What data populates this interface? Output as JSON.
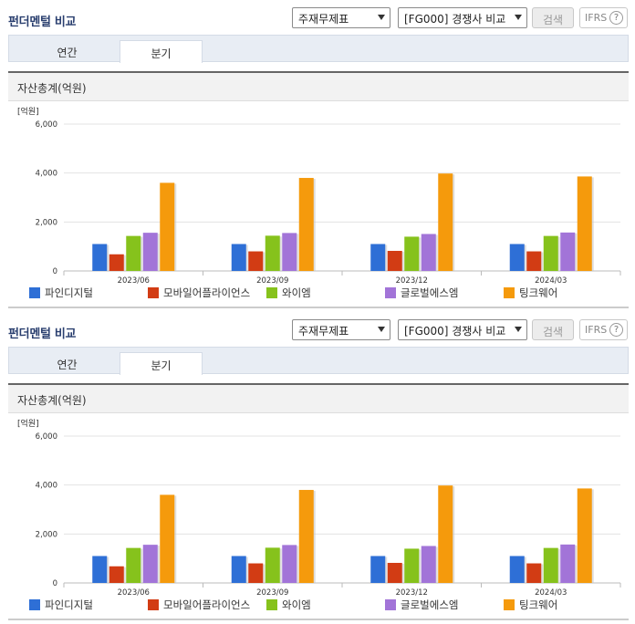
{
  "sections": [
    {
      "title": "펀더멘털 비교",
      "select_statement": "주재무제표",
      "select_compare": "[FG000] 경쟁사 비교",
      "search_label": "검색",
      "ifrs_label": "IFRS",
      "help_glyph": "?",
      "tabs": [
        {
          "label": "연간"
        },
        {
          "label": "분기"
        }
      ],
      "panel_title": "자산총계(억원)"
    },
    {
      "title": "펀더멘털 비교",
      "select_statement": "주재무제표",
      "select_compare": "[FG000] 경쟁사 비교",
      "search_label": "검색",
      "ifrs_label": "IFRS",
      "help_glyph": "?",
      "tabs": [
        {
          "label": "연간"
        },
        {
          "label": "분기"
        }
      ],
      "panel_title": "자산총계(억원)"
    }
  ],
  "colors": {
    "series": [
      "#2e6fd6",
      "#d23c14",
      "#86c21c",
      "#a274d8",
      "#f59a0c"
    ],
    "title": "#2a3f6f"
  },
  "chart_data": [
    {
      "type": "bar",
      "unit_label": "[억원]",
      "categories": [
        "2023/06",
        "2023/09",
        "2023/12",
        "2024/03"
      ],
      "ylim": [
        0,
        6000
      ],
      "yticks": [
        "0",
        "2,000",
        "4,000",
        "6,000"
      ],
      "grid": true,
      "legend_position": "bottom",
      "series": [
        {
          "name": "파인디지털",
          "values": [
            1100,
            1100,
            1100,
            1100
          ]
        },
        {
          "name": "모바일어플라이언스",
          "values": [
            680,
            800,
            820,
            800
          ]
        },
        {
          "name": "와이엠",
          "values": [
            1430,
            1440,
            1400,
            1430
          ]
        },
        {
          "name": "글로벌에스엠",
          "values": [
            1560,
            1550,
            1510,
            1570
          ]
        },
        {
          "name": "팅크웨어",
          "values": [
            3600,
            3800,
            3980,
            3860
          ]
        }
      ]
    },
    {
      "type": "bar",
      "unit_label": "[억원]",
      "categories": [
        "2023/06",
        "2023/09",
        "2023/12",
        "2024/03"
      ],
      "ylim": [
        0,
        6000
      ],
      "yticks": [
        "0",
        "2,000",
        "4,000",
        "6,000"
      ],
      "grid": true,
      "legend_position": "bottom",
      "series": [
        {
          "name": "파인디지털",
          "values": [
            1100,
            1100,
            1100,
            1100
          ]
        },
        {
          "name": "모바일어플라이언스",
          "values": [
            680,
            800,
            820,
            800
          ]
        },
        {
          "name": "와이엠",
          "values": [
            1430,
            1440,
            1400,
            1430
          ]
        },
        {
          "name": "글로벌에스엠",
          "values": [
            1560,
            1550,
            1510,
            1570
          ]
        },
        {
          "name": "팅크웨어",
          "values": [
            3600,
            3800,
            3980,
            3860
          ]
        }
      ]
    }
  ]
}
